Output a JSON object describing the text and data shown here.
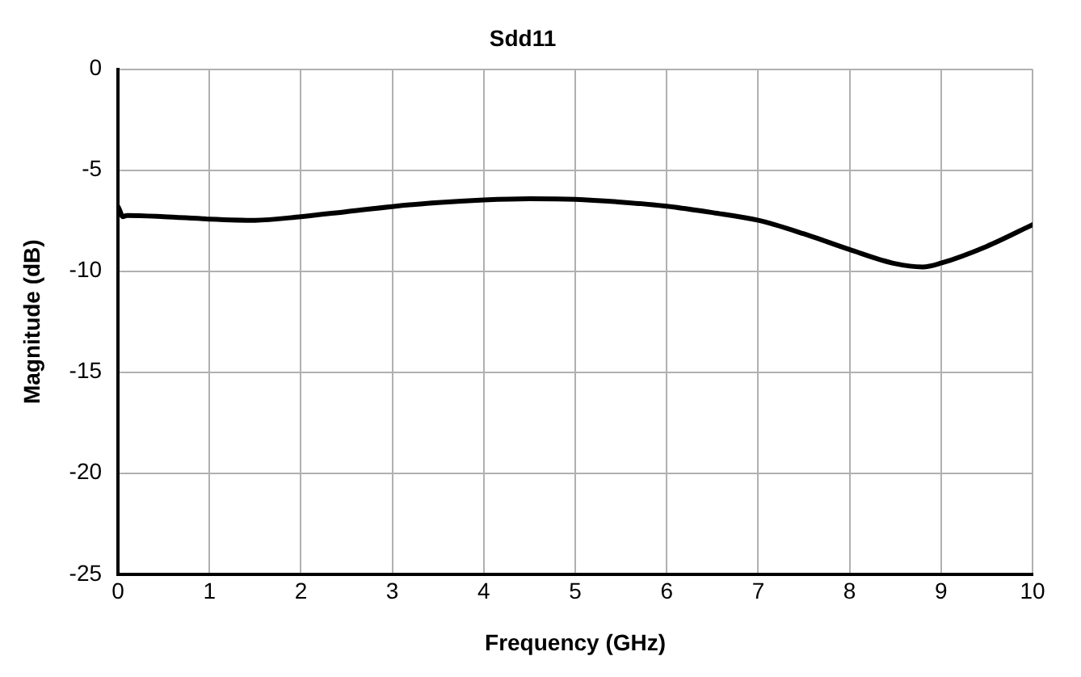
{
  "chart_data": {
    "type": "line",
    "title": "Sdd11",
    "xlabel": "Frequency (GHz)",
    "ylabel": "Magnitude (dB)",
    "series": [
      {
        "color": "#000000",
        "x": [
          0,
          0.02,
          0.05,
          0.1,
          0.5,
          1,
          1.5,
          2,
          2.5,
          3,
          3.5,
          4,
          4.5,
          5,
          5.5,
          6,
          6.5,
          7,
          7.5,
          8,
          8.5,
          8.8,
          9,
          9.5,
          10
        ],
        "values": [
          -6.8,
          -7.0,
          -7.3,
          -7.24,
          -7.3,
          -7.42,
          -7.48,
          -7.3,
          -7.05,
          -6.8,
          -6.6,
          -6.47,
          -6.41,
          -6.44,
          -6.58,
          -6.78,
          -7.1,
          -7.48,
          -8.15,
          -8.93,
          -9.63,
          -9.79,
          -9.6,
          -8.77,
          -7.7
        ]
      }
    ],
    "xlim": [
      0,
      10
    ],
    "xticks": [
      0,
      1,
      2,
      3,
      4,
      5,
      6,
      7,
      8,
      9,
      10
    ],
    "ylim": [
      -25,
      0
    ],
    "yticks": [
      -25,
      -20,
      -15,
      -10,
      -5,
      0
    ],
    "grid": true,
    "legend": false,
    "marker": "none",
    "line_style": "solid"
  }
}
